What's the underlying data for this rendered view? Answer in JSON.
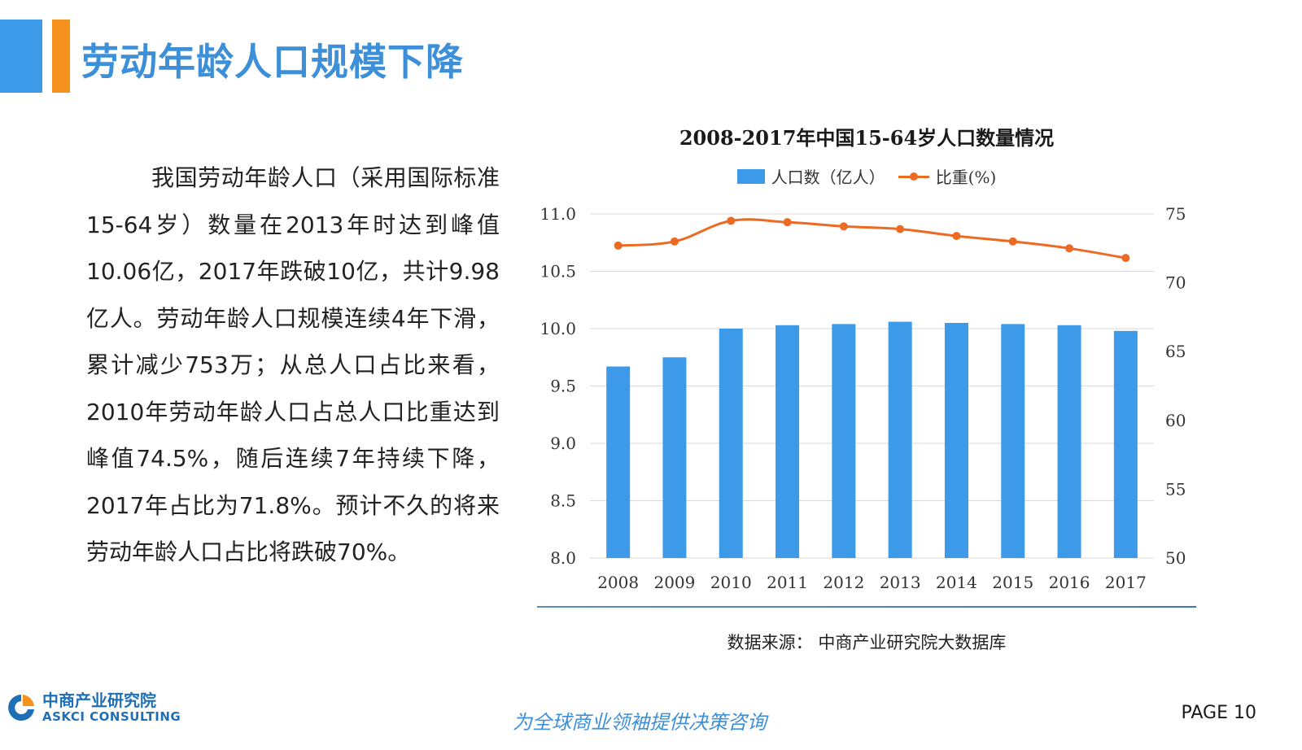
{
  "header": {
    "title": "劳动年龄人口规模下降"
  },
  "body": {
    "paragraph": "我国劳动年龄人口（采用国际标准15-64岁）数量在2013年时达到峰值10.06亿，2017年跌破10亿，共计9.98亿人。劳动年龄人口规模连续4年下滑，累计减少753万；从总人口占比来看，2010年劳动年龄人口占总人口比重达到峰值74.5%，随后连续7年持续下降，2017年占比为71.8%。预计不久的将来劳动年龄人口占比将跌破70%。"
  },
  "chart_data": {
    "type": "bar",
    "title": "2008-2017年中国15-64岁人口数量情况",
    "categories": [
      "2008",
      "2009",
      "2010",
      "2011",
      "2012",
      "2013",
      "2014",
      "2015",
      "2016",
      "2017"
    ],
    "series": [
      {
        "name": "人口数（亿人）",
        "type": "bar",
        "axis": "left",
        "values": [
          9.67,
          9.75,
          10.0,
          10.03,
          10.04,
          10.06,
          10.05,
          10.04,
          10.03,
          9.98
        ]
      },
      {
        "name": "比重(%)",
        "type": "line",
        "axis": "right",
        "values": [
          72.7,
          73.0,
          74.5,
          74.4,
          74.1,
          73.9,
          73.4,
          73.0,
          72.5,
          71.8
        ]
      }
    ],
    "y_left": {
      "min": 8.0,
      "max": 11.0,
      "ticks": [
        "8.0",
        "8.5",
        "9.0",
        "9.5",
        "10.0",
        "10.5",
        "11.0"
      ]
    },
    "y_right": {
      "min": 50,
      "max": 75,
      "ticks": [
        "50",
        "55",
        "60",
        "65",
        "70",
        "75"
      ]
    },
    "grid": true,
    "legend_position": "top-center",
    "colors": {
      "bar": "#3d9ae8",
      "line": "#ec6a22",
      "grid": "#d9d9d9"
    }
  },
  "source": {
    "text": "数据来源：  中商产业研究院大数据库"
  },
  "footer": {
    "logo_cn": "中商产业研究院",
    "logo_en": "ASKCI CONSULTING",
    "slogan": "为全球商业领袖提供决策咨询",
    "page": "PAGE  10"
  },
  "icons": {
    "logo": "askci-logo-icon"
  }
}
